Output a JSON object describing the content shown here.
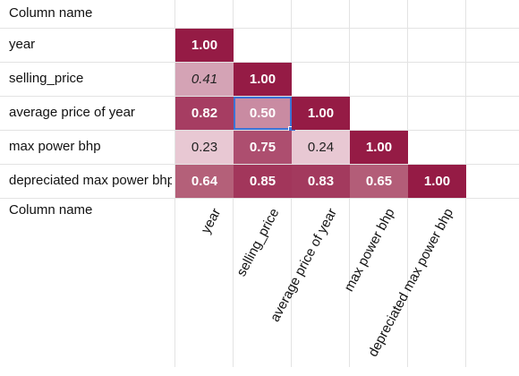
{
  "header_label": "Column name",
  "footer_label": "Column name",
  "rows": [
    {
      "label": "year",
      "cells": [
        {
          "value": "1.00",
          "bg": "#951b45",
          "fg": "#ffffff",
          "bold": true,
          "italic": false
        }
      ]
    },
    {
      "label": "selling_price",
      "cells": [
        {
          "value": "0.41",
          "bg": "#d4a3b5",
          "fg": "#222222",
          "bold": false,
          "italic": true
        },
        {
          "value": "1.00",
          "bg": "#951b45",
          "fg": "#ffffff",
          "bold": true,
          "italic": false
        }
      ]
    },
    {
      "label": "average price of year",
      "cells": [
        {
          "value": "0.82",
          "bg": "#a63d62",
          "fg": "#ffffff",
          "bold": true,
          "italic": false
        },
        {
          "value": "0.50",
          "bg": "#c98ba2",
          "fg": "#ffffff",
          "bold": true,
          "italic": false,
          "selected": true
        },
        {
          "value": "1.00",
          "bg": "#951b45",
          "fg": "#ffffff",
          "bold": true,
          "italic": false
        }
      ]
    },
    {
      "label": "max power bhp",
      "cells": [
        {
          "value": "0.23",
          "bg": "#e8c8d3",
          "fg": "#222222",
          "bold": false,
          "italic": false
        },
        {
          "value": "0.75",
          "bg": "#ad4e6f",
          "fg": "#ffffff",
          "bold": true,
          "italic": false
        },
        {
          "value": "0.24",
          "bg": "#e8c8d3",
          "fg": "#222222",
          "bold": false,
          "italic": false
        },
        {
          "value": "1.00",
          "bg": "#951b45",
          "fg": "#ffffff",
          "bold": true,
          "italic": false
        }
      ]
    },
    {
      "label": "depreciated max power bhp",
      "cells": [
        {
          "value": "0.64",
          "bg": "#b46079",
          "fg": "#ffffff",
          "bold": true,
          "italic": false
        },
        {
          "value": "0.85",
          "bg": "#a2365b",
          "fg": "#ffffff",
          "bold": true,
          "italic": false
        },
        {
          "value": "0.83",
          "bg": "#a33a5e",
          "fg": "#ffffff",
          "bold": true,
          "italic": false
        },
        {
          "value": "0.65",
          "bg": "#b35d78",
          "fg": "#ffffff",
          "bold": true,
          "italic": false
        },
        {
          "value": "1.00",
          "bg": "#951b45",
          "fg": "#ffffff",
          "bold": true,
          "italic": false
        }
      ]
    }
  ],
  "columns": [
    "year",
    "selling_price",
    "average price of year",
    "max power bhp",
    "depreciated max power bhp"
  ],
  "selection_color": "#3b73d6"
}
